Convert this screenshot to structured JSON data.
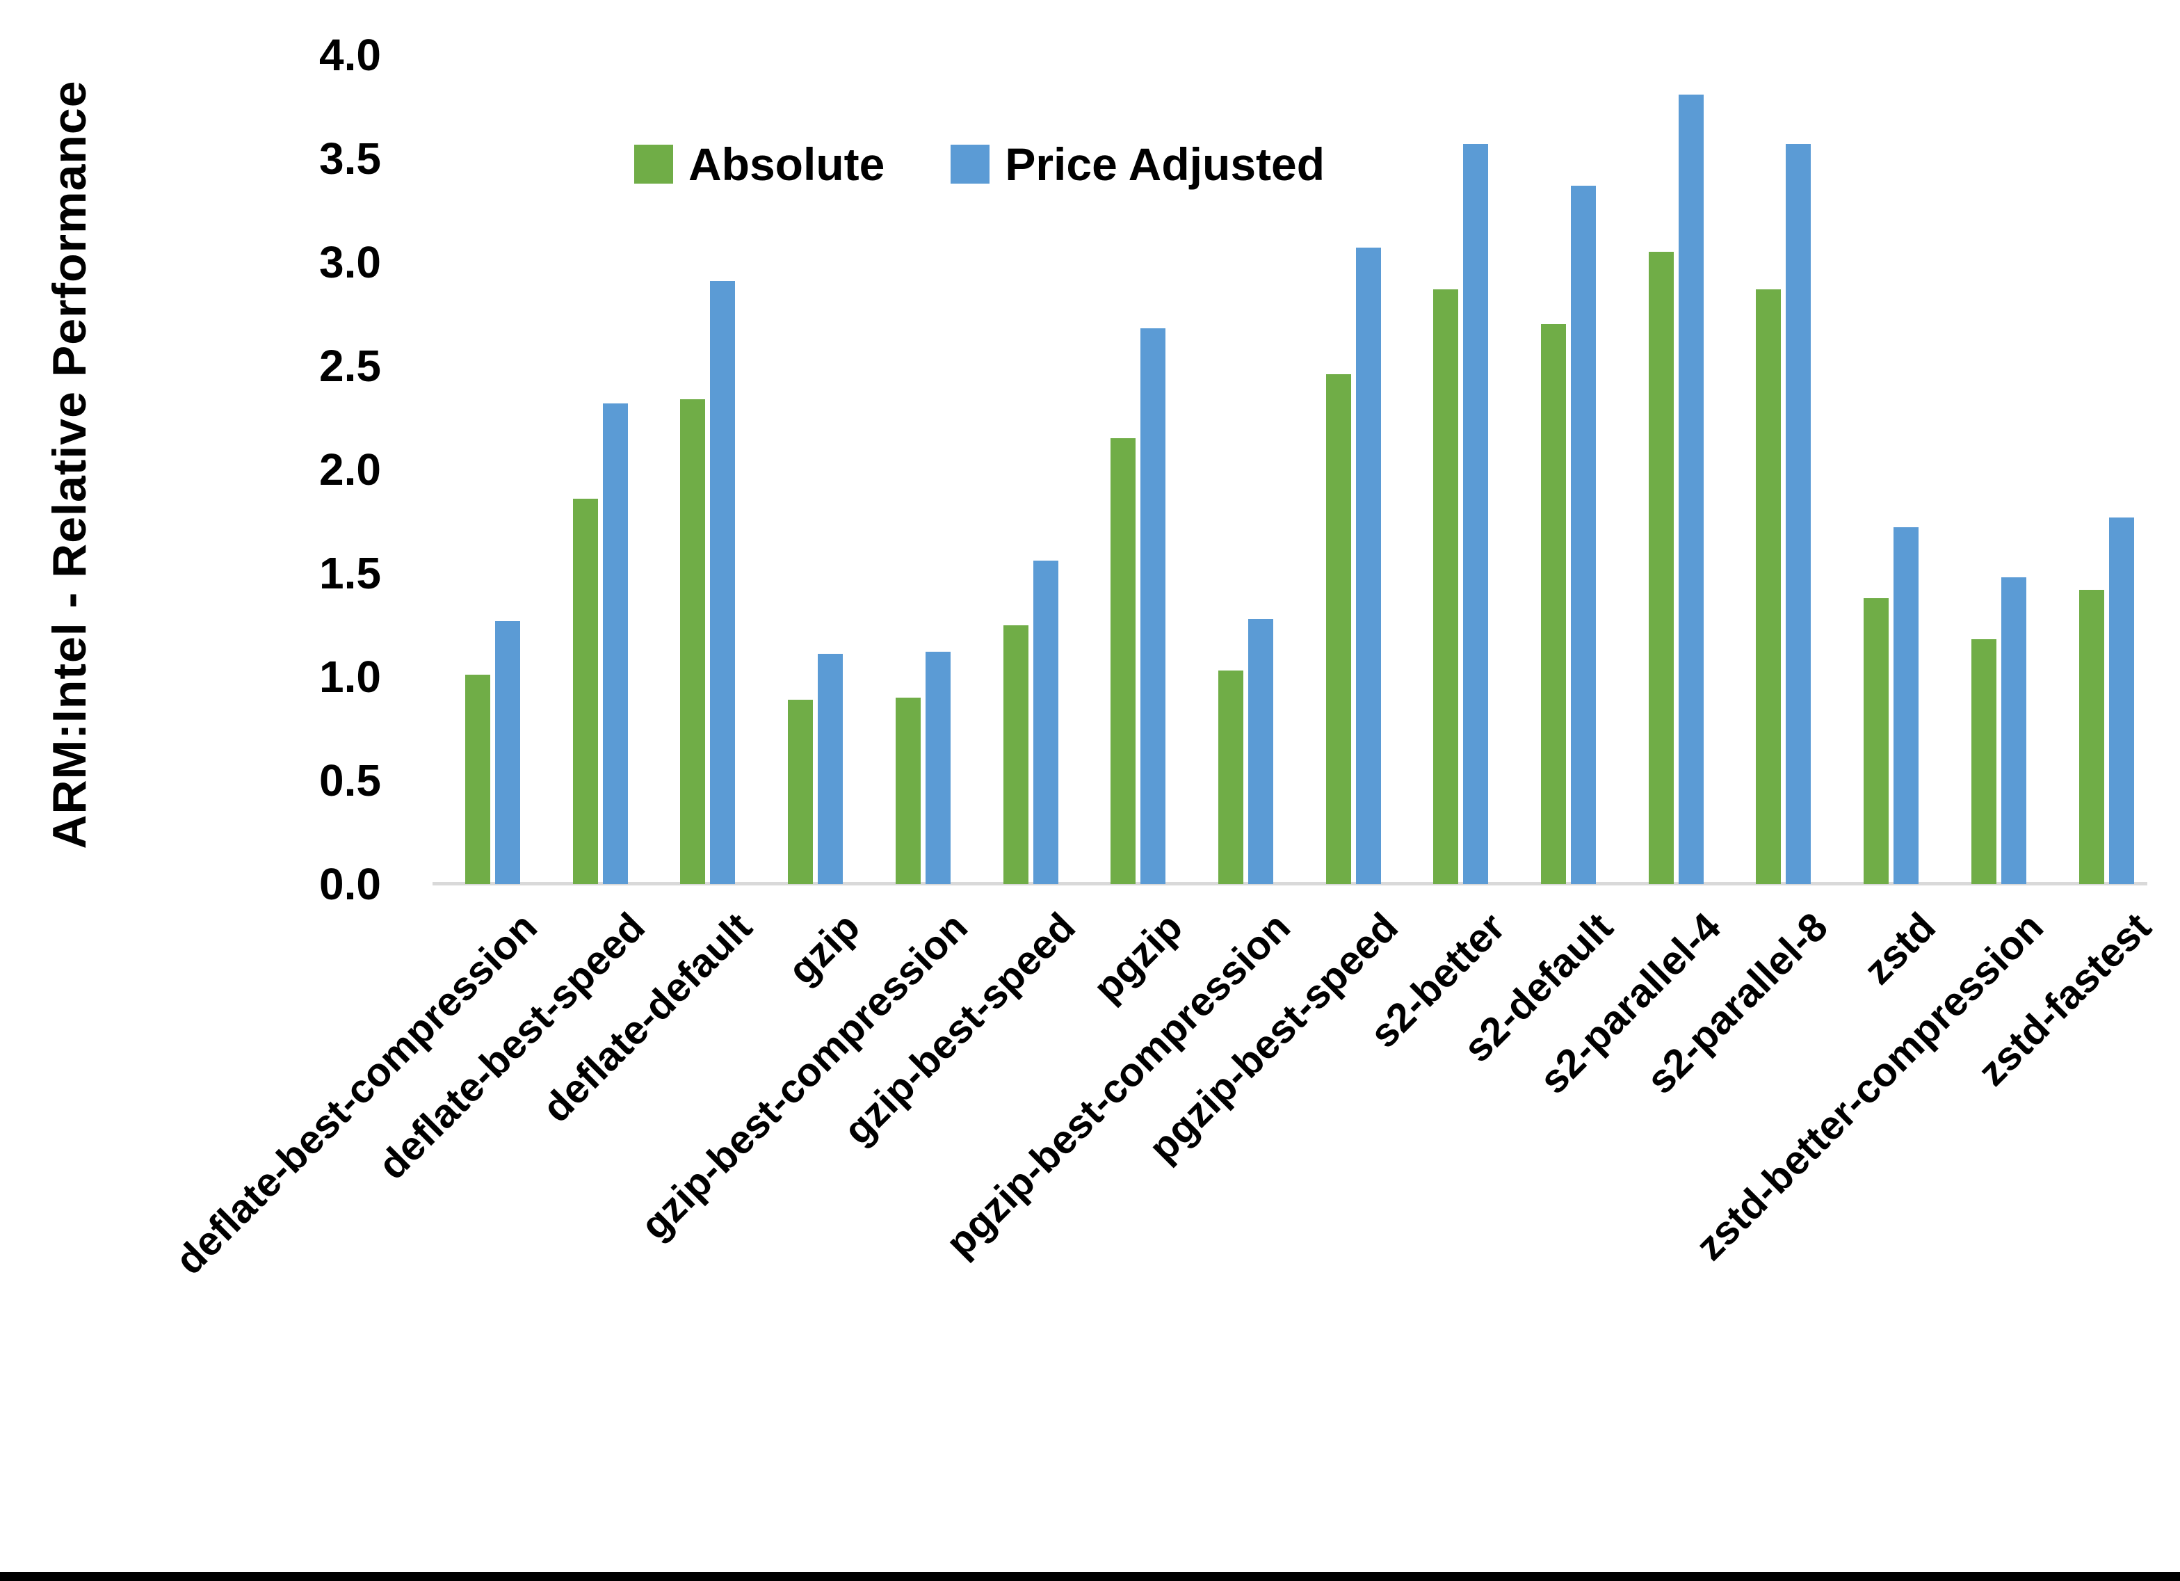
{
  "chart_data": {
    "type": "bar",
    "title": "",
    "xlabel": "",
    "ylabel": "ARM:Intel - Relative Performance",
    "ylim": [
      0,
      4
    ],
    "ytick_step": 0.5,
    "ytick_labels": [
      "0.0",
      "0.5",
      "1.0",
      "1.5",
      "2.0",
      "2.5",
      "3.0",
      "3.5",
      "4.0"
    ],
    "grid": false,
    "legend_position": "top-center",
    "axis_color": "#d9d9d9",
    "text_color": "#000000",
    "bottom_edge_color": "#000000",
    "categories": [
      "deflate-best-compression",
      "deflate-best-speed",
      "deflate-default",
      "gzip",
      "gzip-best-compression",
      "gzip-best-speed",
      "pgzip",
      "pgzip-best-compression",
      "pgzip-best-speed",
      "s2-better",
      "s2-default",
      "s2-parallel-4",
      "s2-parallel-8",
      "zstd",
      "zstd-better-compression",
      "zstd-fastest"
    ],
    "series": [
      {
        "name": "Absolute",
        "color": "#70AD47",
        "values": [
          1.01,
          1.86,
          2.34,
          0.89,
          0.9,
          1.25,
          2.15,
          1.03,
          2.46,
          2.87,
          2.7,
          3.05,
          2.87,
          1.38,
          1.18,
          1.42
        ]
      },
      {
        "name": "Price Adjusted",
        "color": "#5B9BD5",
        "values": [
          1.27,
          2.32,
          2.91,
          1.11,
          1.12,
          1.56,
          2.68,
          1.28,
          3.07,
          3.57,
          3.37,
          3.81,
          3.57,
          1.72,
          1.48,
          1.77
        ]
      }
    ]
  }
}
